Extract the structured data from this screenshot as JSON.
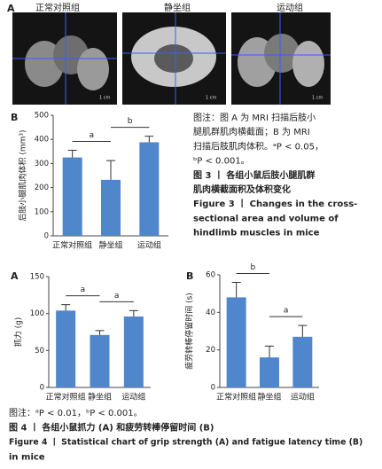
{
  "figure3": {
    "panel_a_label": "A",
    "image_labels": [
      "正常对照组",
      "静坐组",
      "运动组"
    ],
    "scale_bar": "1 cm",
    "caption_lines": [
      "图注：图 A 为 MRI 扫描后肢小",
      "腿肌群肌肉横截面；B 为 MRI",
      "扫描后肢肌肉体积。ᵃP < 0.05，",
      "ᵇP < 0.001。",
      "图 3 丨 各组小鼠后肢小腿肌群",
      "肌肉横截面积及体积变化",
      "Figure 3 丨 Changes in the cross-",
      "sectional area and volume of",
      "hindlimb muscles in mice"
    ]
  },
  "chart_data": [
    {
      "type": "bar",
      "panel_label": "B",
      "ylabel": "后肢小腿肌肉体积 (mm³)",
      "categories": [
        "正常对照组",
        "静坐组",
        "运动组"
      ],
      "values": [
        325,
        232,
        388
      ],
      "errors": [
        30,
        80,
        25
      ],
      "color": "#4f86cc",
      "ylim": [
        0,
        500
      ],
      "yticks": [
        0,
        100,
        200,
        300,
        400,
        500
      ],
      "annotations": [
        {
          "text": "a",
          "between": [
            0,
            1
          ]
        },
        {
          "text": "b",
          "between": [
            1,
            2
          ]
        }
      ]
    },
    {
      "type": "bar",
      "panel_label": "A",
      "ylabel": "抓力 (g)",
      "categories": [
        "正常对照组",
        "静坐组",
        "运动组"
      ],
      "values": [
        104,
        71,
        96
      ],
      "errors": [
        8,
        6,
        8
      ],
      "color": "#4f86cc",
      "ylim": [
        0,
        150
      ],
      "yticks": [
        0,
        50,
        100,
        150
      ],
      "annotations": [
        {
          "text": "a",
          "between": [
            0,
            1
          ]
        },
        {
          "text": "a",
          "between": [
            1,
            2
          ]
        }
      ]
    },
    {
      "type": "bar",
      "panel_label": "B",
      "ylabel": "疲劳转棒停留时间 (s)",
      "categories": [
        "正常对照组",
        "静坐组",
        "运动组"
      ],
      "values": [
        48,
        16,
        27
      ],
      "errors": [
        8,
        6,
        6
      ],
      "color": "#4f86cc",
      "ylim": [
        0,
        60
      ],
      "yticks": [
        0,
        20,
        40,
        60
      ],
      "annotations": [
        {
          "text": "b",
          "between": [
            0,
            1
          ]
        },
        {
          "text": "a",
          "between": [
            1,
            2
          ]
        }
      ]
    }
  ],
  "figure4": {
    "caption_lines": [
      "图注：ᵃP < 0.01，ᵇP < 0.001。",
      "图 4 丨 各组小鼠抓力 (A) 和疲劳转棒停留时间 (B)",
      "Figure 4 丨 Statistical chart of grip strength (A) and fatigue latency time (B)",
      "in mice"
    ]
  }
}
